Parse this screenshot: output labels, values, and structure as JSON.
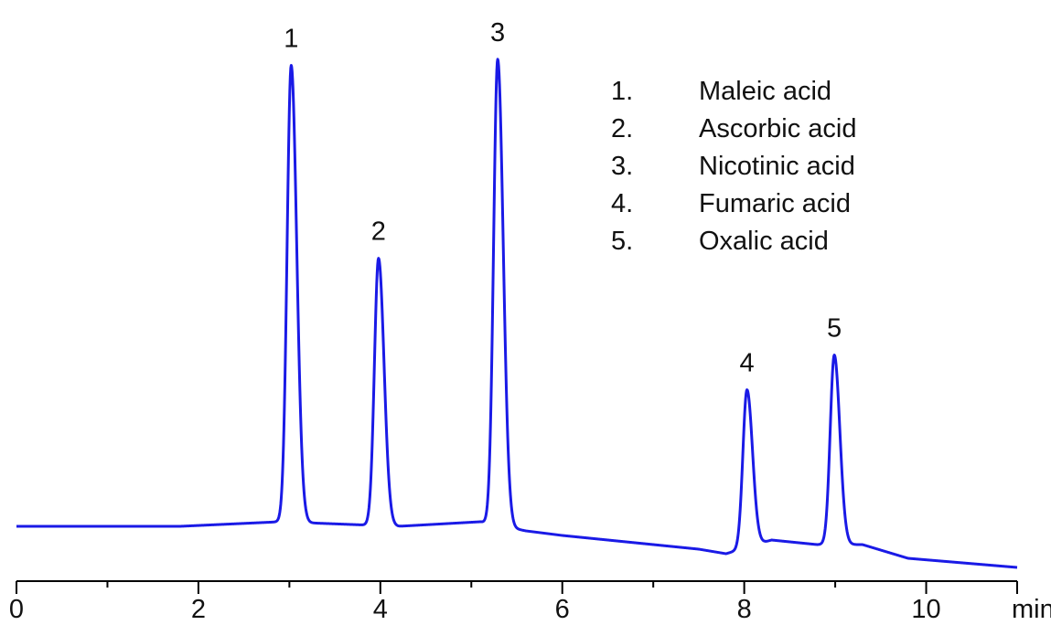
{
  "chart_data": {
    "type": "line",
    "title": "",
    "xlabel": "",
    "ylabel": "",
    "x_unit": "min",
    "xlim": [
      0,
      11
    ],
    "x_ticks": [
      "0",
      "2",
      "4",
      "6",
      "8",
      "10"
    ],
    "grid": false,
    "baseline": [
      [
        0,
        0.0
      ],
      [
        1.8,
        0.0
      ],
      [
        2.9,
        0.01
      ],
      [
        4.2,
        0.0
      ],
      [
        5.1,
        0.01
      ],
      [
        5.6,
        -0.01
      ],
      [
        6.0,
        -0.02
      ],
      [
        6.5,
        -0.03
      ],
      [
        7.0,
        -0.04
      ],
      [
        7.5,
        -0.05
      ],
      [
        7.8,
        -0.06
      ],
      [
        8.3,
        -0.03
      ],
      [
        8.8,
        -0.04
      ],
      [
        9.3,
        -0.04
      ],
      [
        9.8,
        -0.07
      ],
      [
        10.4,
        -0.08
      ],
      [
        11.0,
        -0.09
      ]
    ],
    "series_color": "#1a1ae6",
    "peaks": [
      {
        "label": "1",
        "name": "Maleic acid",
        "rt": 3.02,
        "height": 1.0
      },
      {
        "label": "2",
        "name": "Ascorbic acid",
        "rt": 3.98,
        "height": 0.585
      },
      {
        "label": "3",
        "name": "Nicotinic acid",
        "rt": 5.29,
        "height": 1.02
      },
      {
        "label": "4",
        "name": "Fumaric acid",
        "rt": 8.03,
        "height": 0.345
      },
      {
        "label": "5",
        "name": "Oxalic acid",
        "rt": 8.99,
        "height": 0.415
      }
    ]
  },
  "legend": [
    {
      "num": "1.",
      "name": "Maleic acid"
    },
    {
      "num": "2.",
      "name": "Ascorbic acid"
    },
    {
      "num": "3.",
      "name": "Nicotinic acid"
    },
    {
      "num": "4.",
      "name": "Fumaric acid"
    },
    {
      "num": "5.",
      "name": "Oxalic acid"
    }
  ],
  "unit_label": "min"
}
